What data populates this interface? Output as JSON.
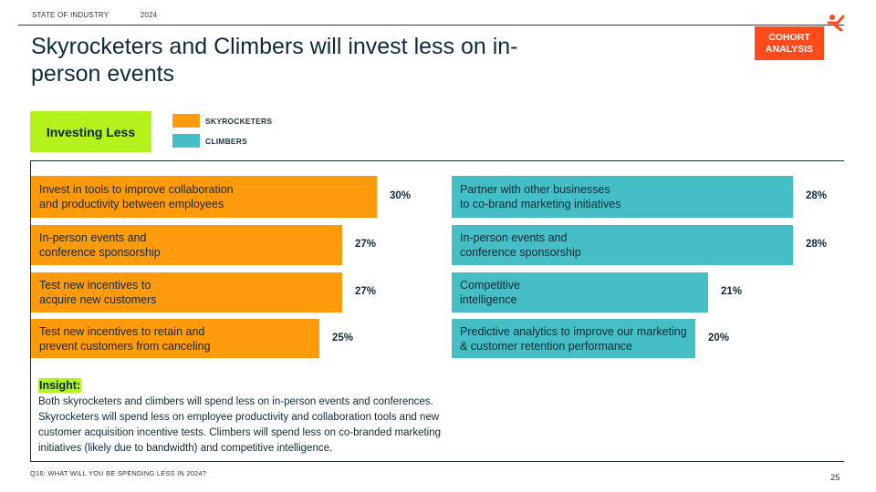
{
  "header": {
    "section": "STATE OF INDUSTRY",
    "year": "2024",
    "title": "Skyrocketers and Climbers will invest less on in-person events",
    "tag_line1": "COHORT",
    "tag_line2": "ANALYSIS"
  },
  "badge": "Investing Less",
  "legend": [
    {
      "label": "SKYROCKETERS",
      "color": "#ff9a0a"
    },
    {
      "label": "CLIMBERS",
      "color": "#45bec6"
    }
  ],
  "chart_data": {
    "type": "bar",
    "unit": "%",
    "series": [
      {
        "name": "SKYROCKETERS",
        "color": "#ff9a0a",
        "categories": [
          "Invest in tools to improve collaboration\nand productivity between employees",
          "In-person events and\nconference sponsorship",
          "Test new incentives to\nacquire new customers",
          "Test new incentives to retain and\nprevent customers from canceling"
        ],
        "values": [
          30,
          27,
          27,
          25
        ],
        "labels": [
          "30%",
          "27%",
          "27%",
          "25%"
        ]
      },
      {
        "name": "CLIMBERS",
        "color": "#45bec6",
        "categories": [
          "Partner with other businesses\nto co-brand marketing initiatives",
          "In-person events and\nconference sponsorship",
          "Competitive\nintelligence",
          "Predictive analytics to improve our marketing\n& customer retention performance"
        ],
        "values": [
          28,
          28,
          21,
          20
        ],
        "labels": [
          "28%",
          "28%",
          "21%",
          "20%"
        ]
      }
    ]
  },
  "insight": {
    "title": "Insight:",
    "text": "Both skyrocketers and climbers will spend less on in-person events and conferences.\nSkyrocketers will spend less on employee productivity and collaboration tools and new\ncustomer acquisition incentive tests. Climbers will spend less on co-branded marketing\ninitiatives (likely due to bandwidth) and competitive intelligence."
  },
  "footer": {
    "question": "Q16: WHAT WILL YOU BE SPENDING LESS IN 2024?",
    "page": "25"
  }
}
